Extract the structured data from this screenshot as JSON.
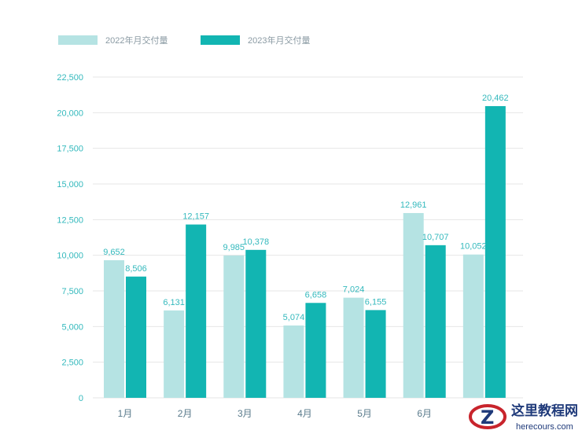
{
  "chart_data": {
    "type": "bar",
    "title": "",
    "xlabel": "",
    "ylabel": "",
    "categories": [
      "1月",
      "2月",
      "3月",
      "4月",
      "5月",
      "6月",
      ""
    ],
    "series": [
      {
        "name": "2022年月交付量",
        "color": "#b5e3e3",
        "values": [
          9652,
          6131,
          9985,
          5074,
          7024,
          12961,
          10052
        ],
        "labels": [
          "9,652",
          "6,131",
          "9,985",
          "5,074",
          "7,024",
          "12,961",
          "10,052"
        ]
      },
      {
        "name": "2023年月交付量",
        "color": "#12b5b2",
        "values": [
          8506,
          12157,
          10378,
          6658,
          6155,
          10707,
          20462
        ],
        "labels": [
          "8,506",
          "12,157",
          "10,378",
          "6,658",
          "6,155",
          "10,707",
          "20,462"
        ]
      }
    ],
    "ylim": [
      0,
      22500
    ],
    "yticks": [
      0,
      2500,
      5000,
      7500,
      10000,
      12500,
      15000,
      17500,
      20000,
      22500
    ],
    "ytick_labels": [
      "0",
      "2,500",
      "5,000",
      "7,500",
      "10,000",
      "12,500",
      "15,000",
      "17,500",
      "20,000",
      "22,500"
    ],
    "grid": true,
    "legend_position": "top-left"
  },
  "watermark": {
    "logo_letter": "Z",
    "title": "这里教程网",
    "subtitle": "herecours.com"
  }
}
